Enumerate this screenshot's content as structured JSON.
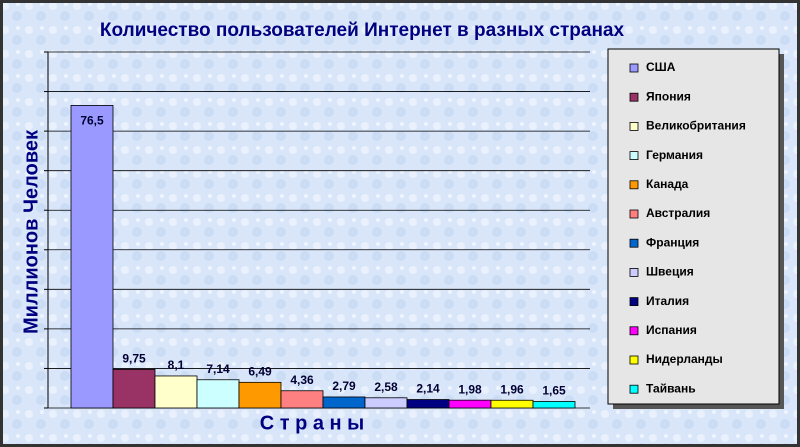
{
  "chart_data": {
    "type": "bar",
    "title": "Количество пользователей Интернет в разных странах",
    "y_label": "Миллионов Человек",
    "x_label": "С т р а н ы",
    "categories": [
      "США",
      "Япония",
      "Великобритания",
      "Германия",
      "Канада",
      "Австралия",
      "Франция",
      "Швеция",
      "Италия",
      "Испания",
      "Нидерланды",
      "Тайвань"
    ],
    "values": [
      76.5,
      9.75,
      8.1,
      7.14,
      6.49,
      4.36,
      2.79,
      2.58,
      2.14,
      1.98,
      1.96,
      1.65
    ],
    "value_labels": [
      "76,5",
      "9,75",
      "8,1",
      "7,14",
      "6,49",
      "4,36",
      "2,79",
      "2,58",
      "2,14",
      "1,98",
      "1,96",
      "1,65"
    ],
    "colors": [
      "#9999ff",
      "#993366",
      "#ffffcc",
      "#ccffff",
      "#ff9900",
      "#ff8080",
      "#0066cc",
      "#ccccff",
      "#000080",
      "#ff00ff",
      "#ffff00",
      "#00ffff"
    ],
    "ylim": [
      0,
      90
    ],
    "yticks": [
      0,
      10,
      20,
      30,
      40,
      50,
      60,
      70,
      80,
      90
    ],
    "grid": true
  }
}
